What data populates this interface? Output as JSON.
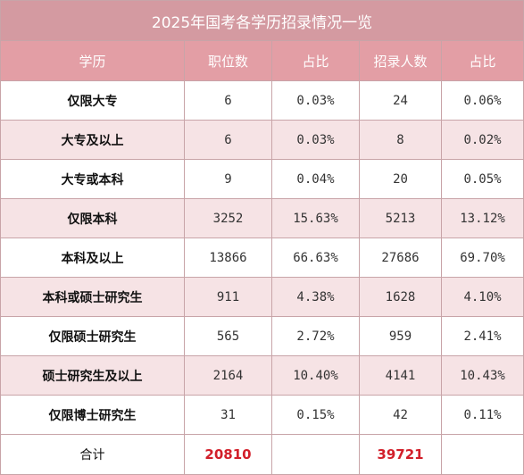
{
  "table": {
    "title": "2025年国考各学历招录情况一览",
    "headers": [
      "学历",
      "职位数",
      "占比",
      "招录人数",
      "占比"
    ],
    "rows": [
      {
        "education": "仅限大专",
        "positions": "6",
        "positions_share": "0.03%",
        "hires": "24",
        "hires_share": "0.06%"
      },
      {
        "education": "大专及以上",
        "positions": "6",
        "positions_share": "0.03%",
        "hires": "8",
        "hires_share": "0.02%"
      },
      {
        "education": "大专或本科",
        "positions": "9",
        "positions_share": "0.04%",
        "hires": "20",
        "hires_share": "0.05%"
      },
      {
        "education": "仅限本科",
        "positions": "3252",
        "positions_share": "15.63%",
        "hires": "5213",
        "hires_share": "13.12%"
      },
      {
        "education": "本科及以上",
        "positions": "13866",
        "positions_share": "66.63%",
        "hires": "27686",
        "hires_share": "69.70%"
      },
      {
        "education": "本科或硕士研究生",
        "positions": "911",
        "positions_share": "4.38%",
        "hires": "1628",
        "hires_share": "4.10%"
      },
      {
        "education": "仅限硕士研究生",
        "positions": "565",
        "positions_share": "2.72%",
        "hires": "959",
        "hires_share": "2.41%"
      },
      {
        "education": "硕士研究生及以上",
        "positions": "2164",
        "positions_share": "10.40%",
        "hires": "4141",
        "hires_share": "10.43%"
      },
      {
        "education": "仅限博士研究生",
        "positions": "31",
        "positions_share": "0.15%",
        "hires": "42",
        "hires_share": "0.11%"
      }
    ],
    "total": {
      "label": "合计",
      "positions": "20810",
      "positions_share": "",
      "hires": "39721",
      "hires_share": ""
    }
  },
  "colors": {
    "title_bg": "#d49aa1",
    "header_bg": "#e39ea5",
    "alt_row_bg": "#f6e3e5",
    "total_emphasis": "#d21f2a",
    "border": "#c8a4a8"
  }
}
